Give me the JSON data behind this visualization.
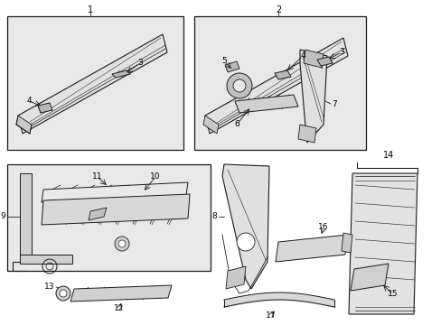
{
  "bg": "#ffffff",
  "box_bg": "#e8e8e8",
  "lc": "#1a1a1a",
  "fig_w": 4.89,
  "fig_h": 3.6,
  "dpi": 100
}
